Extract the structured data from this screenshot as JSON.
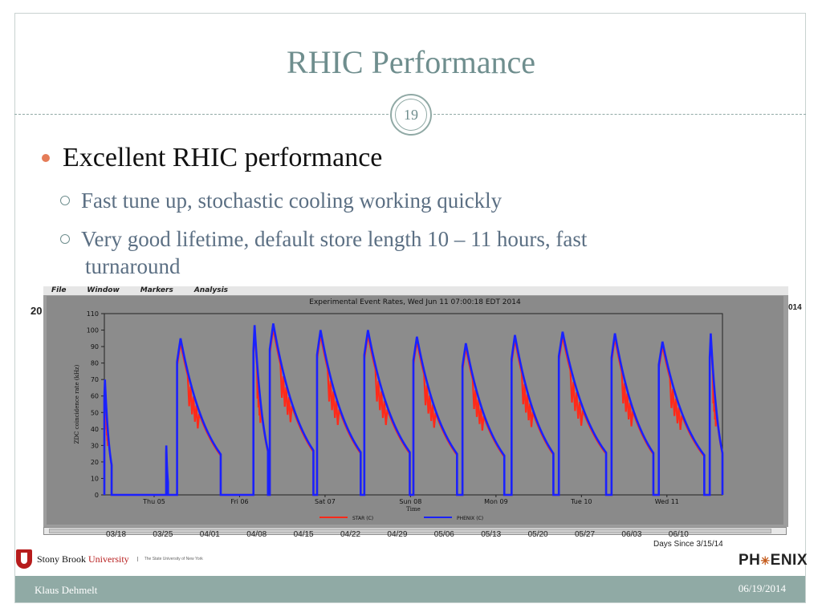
{
  "slide": {
    "title": "RHIC Performance",
    "number": "19",
    "bullet": "Excellent RHIC performance",
    "subbullets": [
      "Fast tune up, stochastic cooling working quickly",
      "Very good lifetime, default store length 10 – 11 hours, fast",
      "turnaround"
    ],
    "footer_left": "Klaus Dehmelt",
    "footer_right": "06/19/2014",
    "accent_color": "#90aaa5",
    "bullet_color": "#e57c58"
  },
  "screenshot": {
    "menu": [
      "File",
      "Window",
      "Markers",
      "Analysis"
    ],
    "plot_title": "Experimental Event Rates, Wed Jun 11 07:00:18 EDT 2014",
    "stray_left": "20",
    "stray_right": "014",
    "dates": [
      "03/18",
      "03/25",
      "04/01",
      "04/08",
      "04/15",
      "04/22",
      "04/29",
      "05/06",
      "05/13",
      "05/20",
      "05/27",
      "06/03",
      "06/10"
    ],
    "days_since": "Days Since 3/15/14"
  },
  "chart_data": {
    "type": "line",
    "title": "Experimental Event Rates, Wed Jun 11 07:00:18 EDT 2014",
    "xlabel": "Time",
    "ylabel": "ZDC coincidence rate (kHz)",
    "ylim": [
      0,
      110
    ],
    "yticks": [
      0,
      10,
      20,
      30,
      40,
      50,
      60,
      70,
      80,
      90,
      100,
      110
    ],
    "xticks": [
      "Thu 05",
      "Fri 06",
      "Sat 07",
      "Sun 08",
      "Mon 09",
      "Tue 10",
      "Wed 11"
    ],
    "legend": [
      "STAR (C)",
      "PHENIX (C)"
    ],
    "series_colors": [
      "#ff2a1a",
      "#1a22ff"
    ],
    "stores": [
      {
        "start": 0.0,
        "end": 0.02,
        "peak": 70
      },
      {
        "start": 0.17,
        "end": 0.175,
        "peak": 30
      },
      {
        "start": 0.2,
        "end": 0.32,
        "peak": 95
      },
      {
        "start": 0.41,
        "end": 0.45,
        "peak": 103
      },
      {
        "start": 0.455,
        "end": 0.575,
        "peak": 104
      },
      {
        "start": 0.585,
        "end": 0.705,
        "peak": 100
      },
      {
        "start": 0.715,
        "end": 0.84,
        "peak": 100
      },
      {
        "start": 0.85,
        "end": 0.97,
        "peak": 96
      },
      {
        "start": 0.985,
        "end": 1.1,
        "peak": 92
      },
      {
        "start": 1.12,
        "end": 1.235,
        "peak": 97
      },
      {
        "start": 1.25,
        "end": 1.38,
        "peak": 99
      },
      {
        "start": 1.395,
        "end": 1.51,
        "peak": 98
      },
      {
        "start": 1.525,
        "end": 1.65,
        "peak": 93
      },
      {
        "start": 1.665,
        "end": 1.7,
        "peak": 98
      }
    ],
    "x_domain": [
      0,
      1.7
    ]
  },
  "brand": {
    "sbu_name_1": "Stony Brook",
    "sbu_name_2": "University",
    "sbu_sub": "The State University of New York",
    "phenix_left": "PH",
    "phenix_star": "✳",
    "phenix_right": "ENIX"
  }
}
